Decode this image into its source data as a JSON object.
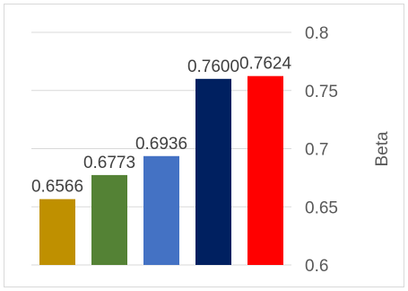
{
  "chart_data": {
    "type": "bar",
    "title": "",
    "xlabel": "",
    "ylabel": "Beta",
    "y_axis_position": "right",
    "ylim": [
      0.6,
      0.8
    ],
    "yticks": [
      "0.6",
      "0.65",
      "0.7",
      "0.75",
      "0.8"
    ],
    "grid": true,
    "legend": "none",
    "bars": [
      {
        "value": 0.6566,
        "label": "0.6566",
        "color": "#bf9000"
      },
      {
        "value": 0.6773,
        "label": "0.6773",
        "color": "#548235"
      },
      {
        "value": 0.6936,
        "label": "0.6936",
        "color": "#4472c4"
      },
      {
        "value": 0.76,
        "label": "0.7600",
        "color": "#002060"
      },
      {
        "value": 0.7624,
        "label": "0.7624",
        "color": "#ff0000"
      }
    ]
  }
}
